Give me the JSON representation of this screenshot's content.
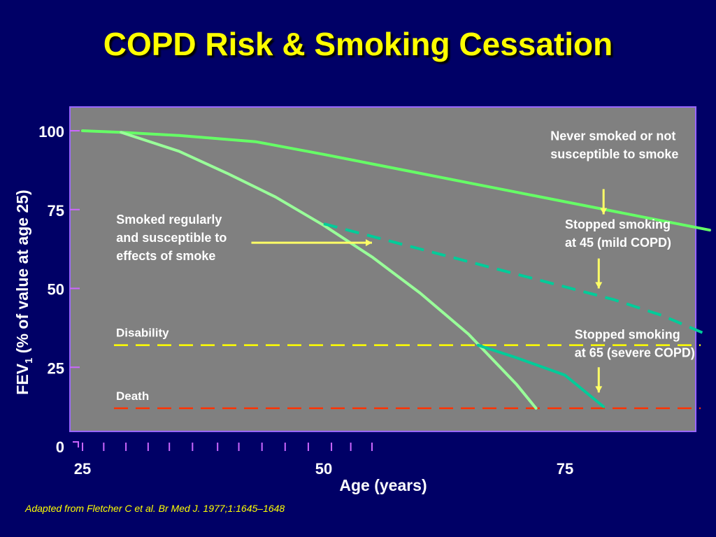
{
  "slide": {
    "title": "COPD Risk & Smoking Cessation",
    "footnote": "Adapted from Fletcher C et al. Br Med J. 1977;1:1645–1648",
    "background": "#000066"
  },
  "chart_data": {
    "type": "line",
    "title": "COPD Risk & Smoking Cessation",
    "xlabel": "Age (years)",
    "ylabel_main": "FEV",
    "ylabel_sub": "1",
    "ylabel_rest": " (% of value at age 25)",
    "xlim": [
      25,
      90
    ],
    "ylim": [
      0,
      107
    ],
    "x_ticks": [
      25,
      50,
      75
    ],
    "y_ticks": [
      0,
      25,
      50,
      75,
      100
    ],
    "x_tick_labels": [
      "25",
      "50",
      "75"
    ],
    "y_tick_labels": [
      "0",
      "25",
      "50",
      "75",
      "100"
    ],
    "grid": false,
    "plot_background": "#808080",
    "plot_border": "#9966ff",
    "series": [
      {
        "color": "#66ff66",
        "style": "solid",
        "x": [
          25,
          29,
          35,
          43,
          50,
          55,
          60,
          65,
          70,
          75,
          80,
          85,
          90
        ],
        "y": [
          100,
          99.5,
          98.5,
          96.5,
          92.5,
          89.5,
          86.5,
          83.5,
          80.5,
          77.5,
          74.5,
          71.5,
          68.5
        ]
      },
      {
        "color": "#99ff99",
        "style": "solid",
        "x": [
          29,
          35,
          40,
          45,
          50,
          55,
          60,
          65,
          70,
          72
        ],
        "y": [
          99.5,
          93.5,
          86.5,
          79,
          70,
          60,
          48.5,
          35.5,
          19.5,
          12
        ]
      },
      {
        "color": "#00cc99",
        "style": "dashed",
        "x": [
          50,
          55,
          60,
          65,
          70,
          75,
          80,
          85,
          90
        ],
        "y": [
          70.5,
          66.5,
          62.5,
          58.5,
          54.5,
          50.5,
          46.5,
          41.5,
          35
        ]
      },
      {
        "color": "#00cc99",
        "style": "solid",
        "x": [
          66,
          70,
          75,
          79
        ],
        "y": [
          32,
          28,
          22.5,
          12.5
        ]
      }
    ],
    "thresholds": [
      {
        "label": "Disability",
        "y": 32,
        "color": "#ffff00"
      },
      {
        "label": "Death",
        "y": 12,
        "color": "#ff3300"
      }
    ],
    "annotations": [
      {
        "lines": [
          "Never smoked or not",
          "susceptible to smoke"
        ],
        "x": 73.5,
        "y": 97,
        "arrow_from": [
          79,
          81.5
        ],
        "arrow_to": [
          79,
          73.5
        ]
      },
      {
        "lines": [
          "Smoked regularly",
          "and susceptible to",
          "effects of smoke"
        ],
        "x": 28.5,
        "y": 70.5,
        "arrow_from": [
          42.5,
          64.5
        ],
        "arrow_to": [
          55,
          64.5
        ]
      },
      {
        "lines": [
          "Stopped smoking",
          "at 45 (mild COPD)"
        ],
        "x": 75,
        "y": 69,
        "arrow_from": [
          78.5,
          59.5
        ],
        "arrow_to": [
          78.5,
          50
        ]
      },
      {
        "lines": [
          "Stopped smoking",
          "at 65 (severe COPD)"
        ],
        "x": 76,
        "y": 34,
        "arrow_from": [
          78.5,
          25
        ],
        "arrow_to": [
          78.5,
          17
        ]
      }
    ],
    "annotation_color": "#ffffff",
    "arrow_color": "#ffff66"
  }
}
